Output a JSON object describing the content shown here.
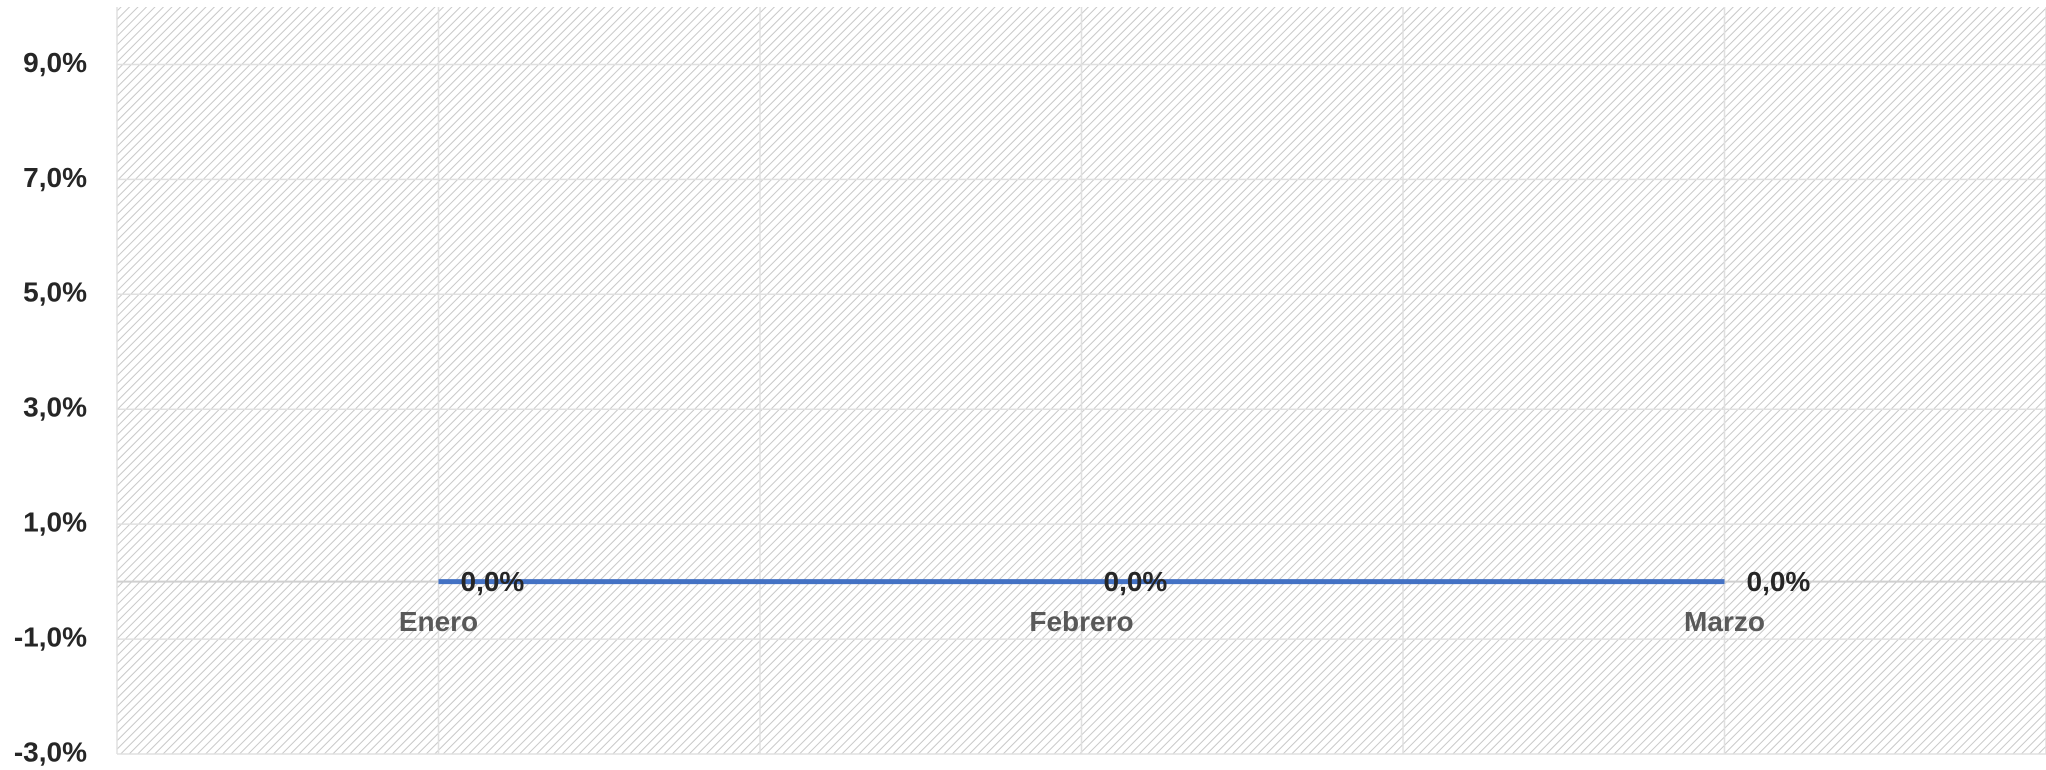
{
  "chart_data": {
    "type": "line",
    "categories": [
      "Enero",
      "Febrero",
      "Marzo"
    ],
    "series": [
      {
        "name": null,
        "color": "#4472c4",
        "values": [
          0,
          0,
          0
        ],
        "value_labels": [
          "0,0%",
          "0,0%",
          "0,0%"
        ]
      }
    ],
    "ylim": [
      -3,
      10
    ],
    "yticks": [
      {
        "value": -3,
        "label": "-3,0%"
      },
      {
        "value": -1,
        "label": "-1,0%"
      },
      {
        "value": 1,
        "label": "1,0%"
      },
      {
        "value": 3,
        "label": "3,0%"
      },
      {
        "value": 5,
        "label": "5,0%"
      },
      {
        "value": 7,
        "label": "7,0%"
      },
      {
        "value": 9,
        "label": "9,0%"
      }
    ],
    "grid": true
  }
}
